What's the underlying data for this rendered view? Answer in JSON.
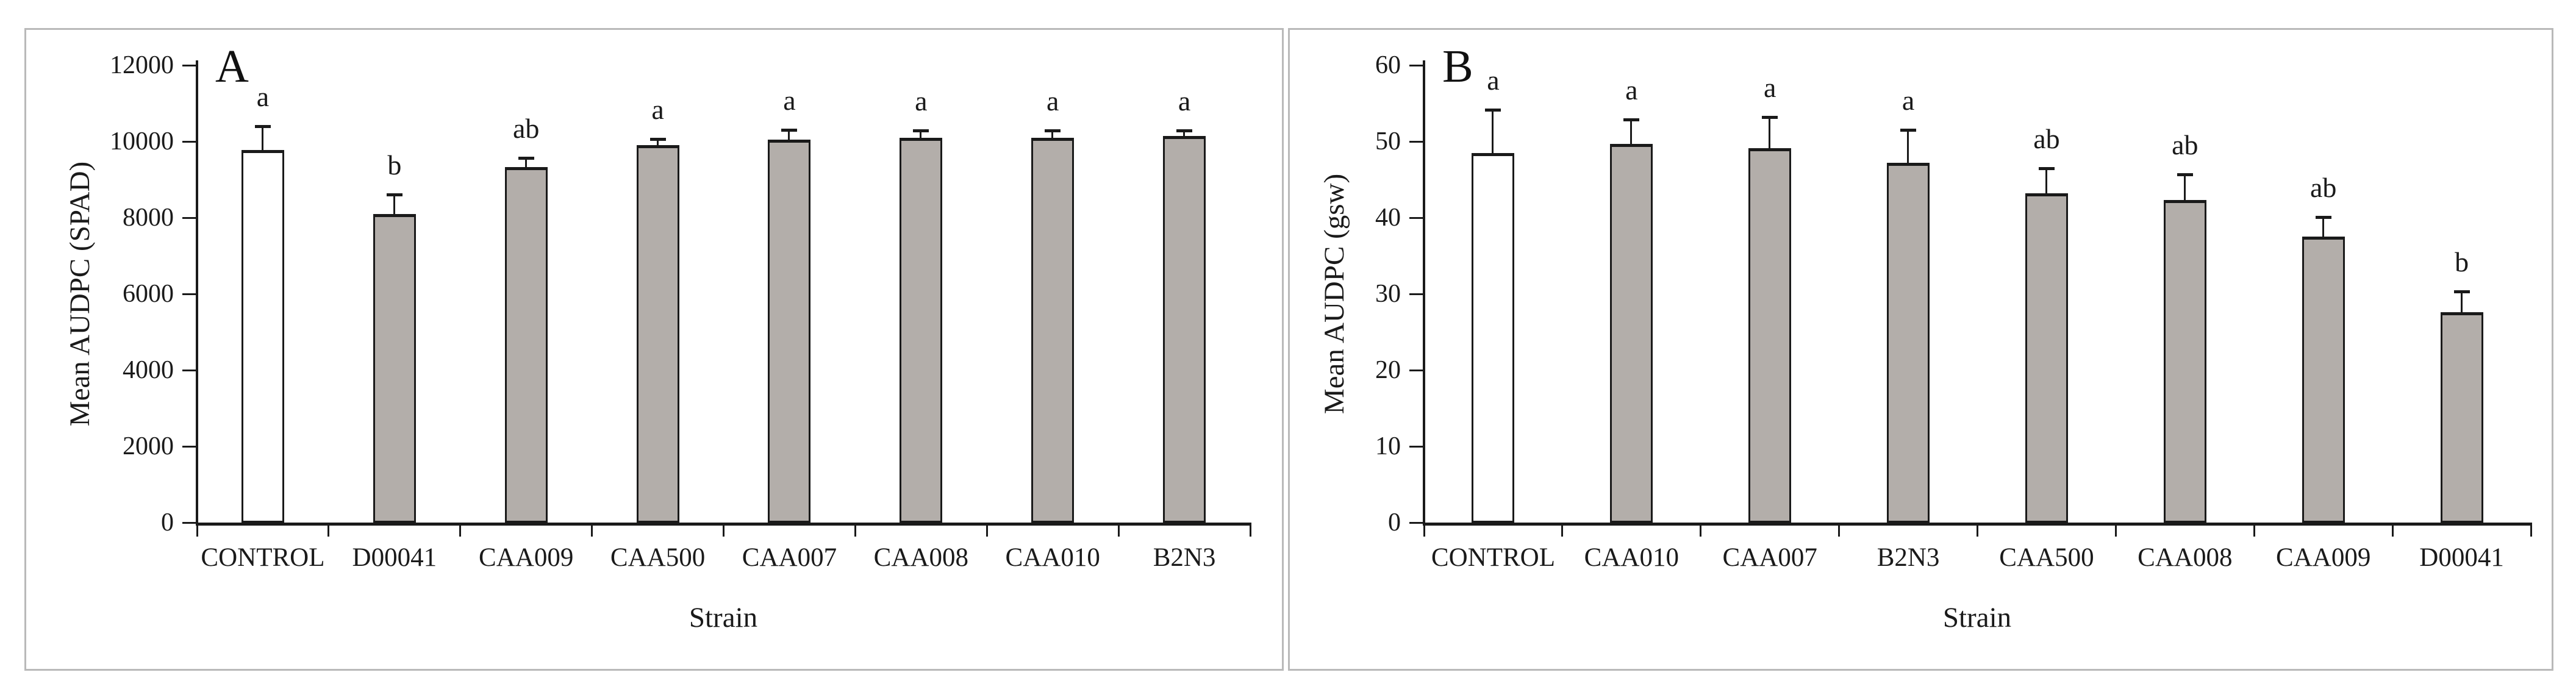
{
  "figure": {
    "description_visible_panels": [
      "A",
      "B"
    ]
  },
  "chart_data": [
    {
      "type": "bar",
      "panel_label": "A",
      "ylabel": "Mean AUDPC (SPAD)",
      "xlabel": "Strain",
      "ylim": [
        0,
        12000
      ],
      "yticks": [
        0,
        2000,
        4000,
        6000,
        8000,
        10000,
        12000
      ],
      "grid": false,
      "legend": null,
      "categories": [
        "CONTROL",
        "D00041",
        "CAA009",
        "CAA500",
        "CAA007",
        "CAA008",
        "CAA010",
        "B2N3"
      ],
      "values": [
        9780,
        8100,
        9330,
        9900,
        10050,
        10100,
        10100,
        10150
      ],
      "errors_plus": [
        620,
        510,
        240,
        170,
        260,
        190,
        190,
        140
      ],
      "sig_letters": [
        "a",
        "b",
        "ab",
        "a",
        "a",
        "a",
        "a",
        "a"
      ],
      "bar_fills": [
        "#ffffff",
        "#b3aeaa",
        "#b3aeaa",
        "#b3aeaa",
        "#b3aeaa",
        "#b3aeaa",
        "#b3aeaa",
        "#b3aeaa"
      ]
    },
    {
      "type": "bar",
      "panel_label": "B",
      "ylabel": "Mean AUDPC (gsw)",
      "xlabel": "Strain",
      "ylim": [
        0,
        60
      ],
      "yticks": [
        0,
        10,
        20,
        30,
        40,
        50,
        60
      ],
      "grid": false,
      "legend": null,
      "categories": [
        "CONTROL",
        "CAA010",
        "CAA007",
        "B2N3",
        "CAA500",
        "CAA008",
        "CAA009",
        "D00041"
      ],
      "values": [
        48.5,
        49.7,
        49.1,
        47.2,
        43.2,
        42.3,
        37.5,
        27.6
      ],
      "errors_plus": [
        5.7,
        3.2,
        4.1,
        4.3,
        3.3,
        3.4,
        2.6,
        2.7
      ],
      "sig_letters": [
        "a",
        "a",
        "a",
        "a",
        "ab",
        "ab",
        "ab",
        "b"
      ],
      "bar_fills": [
        "#ffffff",
        "#b3aeaa",
        "#b3aeaa",
        "#b3aeaa",
        "#b3aeaa",
        "#b3aeaa",
        "#b3aeaa",
        "#b3aeaa"
      ]
    }
  ],
  "colors": {
    "bar_fill_gray": "#b3aeaa",
    "bar_fill_control": "#ffffff",
    "stroke": "#1a1a1a",
    "panel_border": "#b9b9b9",
    "background": "#ffffff"
  }
}
